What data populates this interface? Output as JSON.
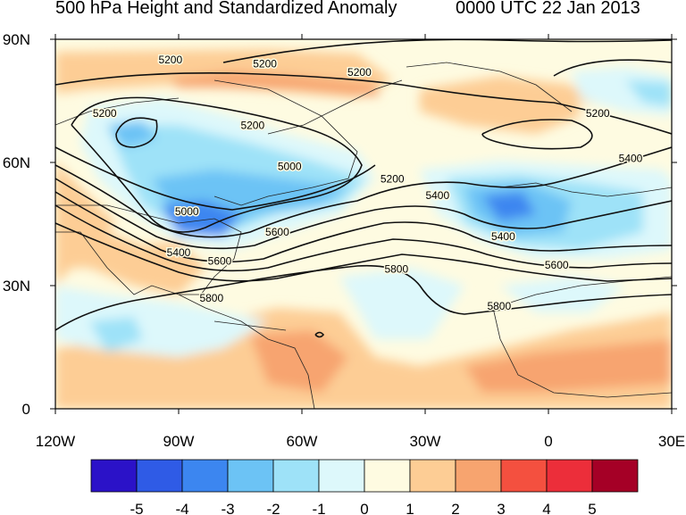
{
  "title": "500 hPa Height and Standardized Anomaly",
  "valid_time": "0000 UTC 22 Jan 2013",
  "map": {
    "lon_range": [
      -120,
      30
    ],
    "lat_range": [
      0,
      90
    ],
    "x_ticks": [
      {
        "lon": -120,
        "label": "120W"
      },
      {
        "lon": -90,
        "label": "90W"
      },
      {
        "lon": -60,
        "label": "60W"
      },
      {
        "lon": -30,
        "label": "30W"
      },
      {
        "lon": 0,
        "label": "0"
      },
      {
        "lon": 30,
        "label": "30E"
      }
    ],
    "y_ticks": [
      {
        "lat": 0,
        "label": "0"
      },
      {
        "lat": 30,
        "label": "30N"
      },
      {
        "lat": 60,
        "label": "60N"
      },
      {
        "lat": 90,
        "label": "90N"
      }
    ],
    "contour_labels": [
      {
        "text": "5200",
        "lon": -92,
        "lat": 85
      },
      {
        "text": "5200",
        "lon": -69,
        "lat": 84
      },
      {
        "text": "5200",
        "lon": -46,
        "lat": 82
      },
      {
        "text": "5200",
        "lon": -108,
        "lat": 72
      },
      {
        "text": "5200",
        "lon": -72,
        "lat": 69
      },
      {
        "text": "5200",
        "lon": -38,
        "lat": 56
      },
      {
        "text": "5200",
        "lon": 12,
        "lat": 72
      },
      {
        "text": "5400",
        "lon": 20,
        "lat": 61
      },
      {
        "text": "5000",
        "lon": -63,
        "lat": 59
      },
      {
        "text": "5000",
        "lon": -88,
        "lat": 48
      },
      {
        "text": "5400",
        "lon": -27,
        "lat": 52
      },
      {
        "text": "5400",
        "lon": -11,
        "lat": 42
      },
      {
        "text": "5400",
        "lon": -90,
        "lat": 38
      },
      {
        "text": "5600",
        "lon": -66,
        "lat": 43
      },
      {
        "text": "5600",
        "lon": -80,
        "lat": 36
      },
      {
        "text": "5600",
        "lon": 2,
        "lat": 35
      },
      {
        "text": "5800",
        "lon": -37,
        "lat": 34
      },
      {
        "text": "5800",
        "lon": -12,
        "lat": 25
      },
      {
        "text": "5800",
        "lon": -82,
        "lat": 27
      }
    ]
  },
  "colorbar": {
    "labels": [
      "-5",
      "-4",
      "-3",
      "-2",
      "-1",
      "0",
      "1",
      "2",
      "3",
      "4",
      "5"
    ],
    "colors": [
      "#2b12c8",
      "#2f5be6",
      "#3c86f0",
      "#6cc3f5",
      "#9ee2f8",
      "#ddf8fb",
      "#fefbe1",
      "#fdcd95",
      "#f7a46f",
      "#f4503f",
      "#ec2e3a",
      "#a50026"
    ]
  }
}
